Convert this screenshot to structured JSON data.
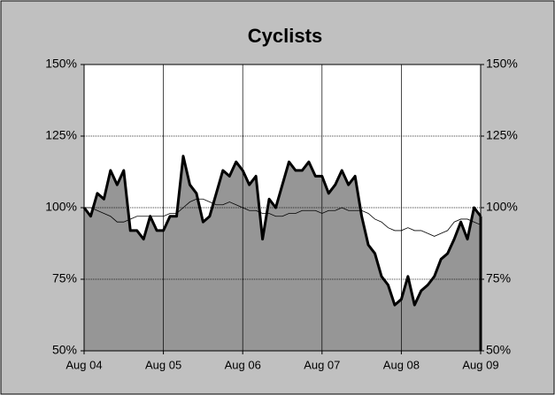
{
  "chart_data": {
    "type": "area-line",
    "title": "Cyclists",
    "categories": [
      "Aug 04",
      null,
      null,
      null,
      null,
      null,
      null,
      null,
      null,
      null,
      null,
      null,
      "Aug 05",
      null,
      null,
      null,
      null,
      null,
      null,
      null,
      null,
      null,
      null,
      null,
      "Aug 06",
      null,
      null,
      null,
      null,
      null,
      null,
      null,
      null,
      null,
      null,
      null,
      "Aug 07",
      null,
      null,
      null,
      null,
      null,
      null,
      null,
      null,
      null,
      null,
      null,
      "Aug 08",
      null,
      null,
      null,
      null,
      null,
      null,
      null,
      null,
      null,
      null,
      null,
      "Aug 09"
    ],
    "series": [
      {
        "color": "#969696",
        "values": [
          100,
          97,
          105,
          103,
          113,
          108,
          113,
          92,
          92,
          89,
          97,
          92,
          92,
          97,
          97,
          118,
          108,
          105,
          95,
          97,
          105,
          113,
          111,
          116,
          113,
          108,
          111,
          89,
          103,
          100,
          108,
          116,
          113,
          113,
          116,
          111,
          111,
          105,
          108,
          113,
          108,
          111,
          97,
          87,
          84,
          76,
          73,
          66,
          68,
          76,
          66,
          71,
          73,
          76,
          82,
          84,
          89,
          95,
          89,
          100,
          97
        ]
      },
      {
        "color": "#000000",
        "values": [
          100,
          100,
          99,
          98,
          97,
          95,
          95,
          96,
          97,
          97,
          97,
          97,
          97,
          98,
          98,
          100,
          102,
          103,
          103,
          102,
          101,
          101,
          102,
          101,
          100,
          99,
          99,
          98,
          98,
          97,
          97,
          98,
          98,
          99,
          99,
          99,
          98,
          99,
          99,
          100,
          99,
          99,
          99,
          98,
          96,
          95,
          93,
          92,
          92,
          93,
          92,
          92,
          91,
          90,
          91,
          92,
          95,
          96,
          96,
          95,
          94
        ]
      }
    ],
    "ylim": [
      50,
      150
    ],
    "yticks": [
      {
        "value": 50,
        "label": "50%"
      },
      {
        "value": 75,
        "label": "75%"
      },
      {
        "value": 100,
        "label": "100%"
      },
      {
        "value": 125,
        "label": "125%"
      },
      {
        "value": 150,
        "label": "150%"
      }
    ],
    "grid": true
  }
}
